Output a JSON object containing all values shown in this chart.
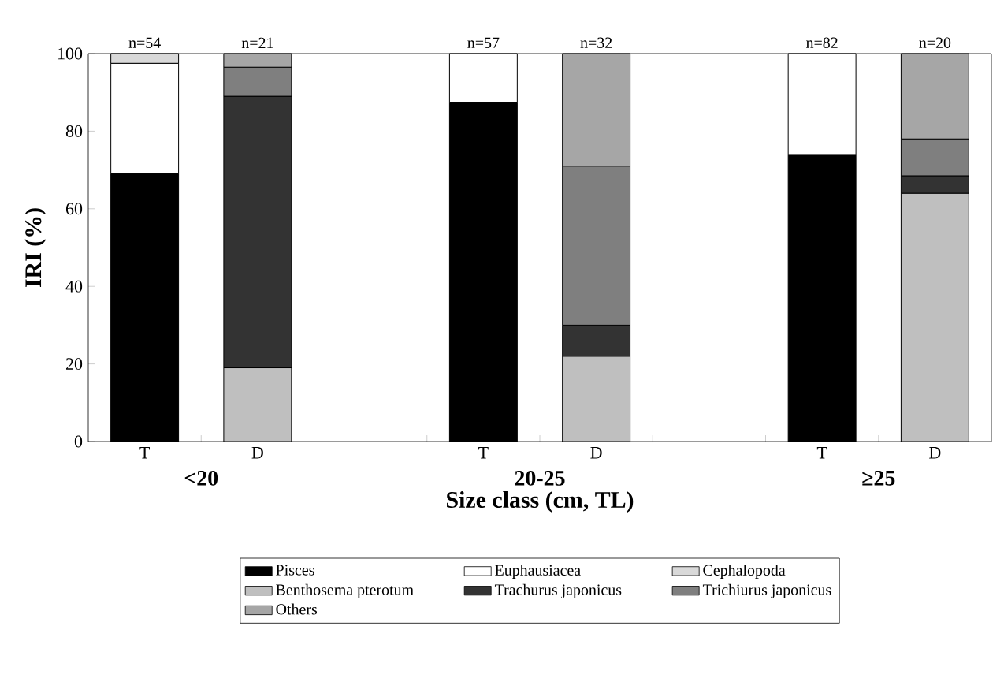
{
  "chart_data": {
    "type": "bar",
    "stacked": true,
    "ylabel": "**IRI** (%)",
    "xlabel": "Size class (cm, TL)",
    "categories": [
      "T",
      "D",
      null,
      "T",
      "D",
      null,
      "T",
      "D"
    ],
    "ylim": [
      0,
      100
    ],
    "yticks": [
      0,
      20,
      40,
      60,
      80,
      100
    ],
    "legend": "bottom",
    "annotations": [
      "n=54",
      "n=21",
      "n=57",
      "n=32",
      "n=82",
      "n=20",
      "<20",
      "20-25",
      "≥25"
    ],
    "series": [
      {
        "name": "Pisces",
        "color": "#000000",
        "values": [
          69,
          null,
          null,
          87.5,
          null,
          null,
          74,
          null
        ]
      },
      {
        "name": "Euphausiacea",
        "color": "#ffffff",
        "values": [
          28.5,
          null,
          null,
          12.5,
          null,
          null,
          26,
          null
        ]
      },
      {
        "name": "Cephalopoda",
        "color": "#d9d9d9",
        "values": [
          2.5,
          null,
          null,
          null,
          null,
          null,
          null,
          null
        ]
      },
      {
        "name": "Benthosema pterotum",
        "color": "#bfbfbf",
        "values": [
          null,
          19,
          null,
          null,
          22,
          null,
          null,
          64
        ]
      },
      {
        "name": "Trachurus japonicus",
        "color": "#333333",
        "values": [
          null,
          70,
          null,
          null,
          8,
          null,
          null,
          4.5
        ]
      },
      {
        "name": "Trichiurus japonicus",
        "color": "#7f7f7f",
        "values": [
          null,
          7.5,
          null,
          null,
          41,
          null,
          null,
          9.5
        ]
      },
      {
        "name": "Others",
        "color": "#a6a6a6",
        "values": [
          null,
          3.5,
          null,
          null,
          29,
          null,
          null,
          22
        ]
      }
    ]
  }
}
